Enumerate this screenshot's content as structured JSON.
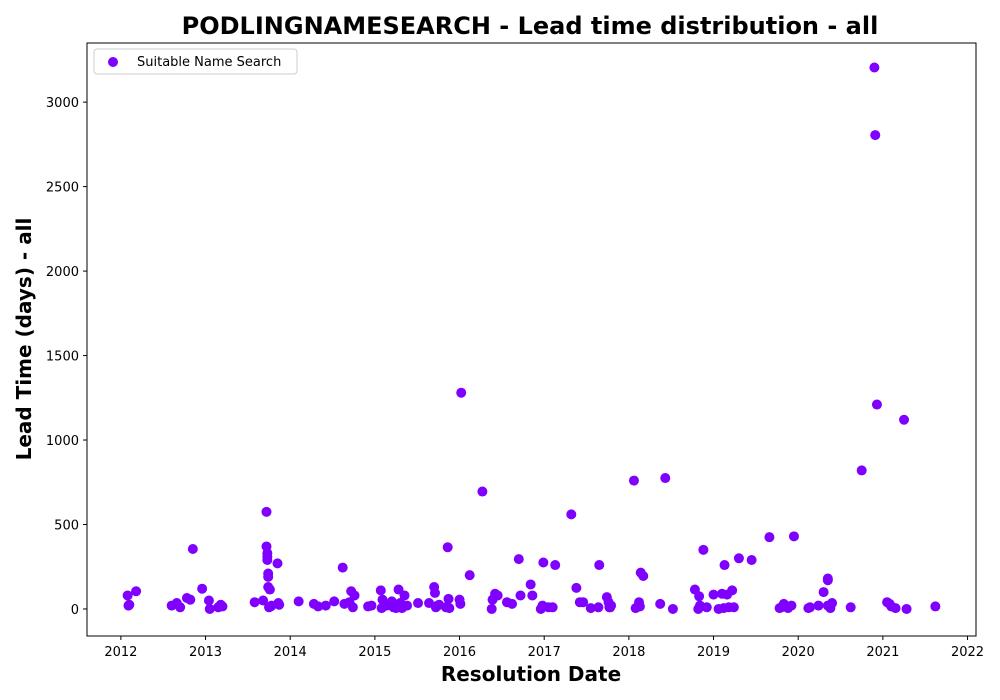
{
  "chart_data": {
    "type": "scatter",
    "title": "PODLINGNAMESEARCH - Lead time distribution - all",
    "xlabel": "Resolution Date",
    "ylabel": "Lead Time (days) - all",
    "xlim": [
      2011.6,
      2022.1
    ],
    "ylim": [
      -160,
      3350
    ],
    "x_ticks": [
      "2012",
      "2013",
      "2014",
      "2015",
      "2016",
      "2017",
      "2018",
      "2019",
      "2020",
      "2021",
      "2022"
    ],
    "y_ticks": [
      "0",
      "500",
      "1000",
      "1500",
      "2000",
      "2500",
      "3000"
    ],
    "legend_position": "top-left",
    "grid": false,
    "series": [
      {
        "name": "Suitable Name Search",
        "color": "#7f00ff",
        "x": [
          2012.08,
          2012.09,
          2012.1,
          2012.18,
          2012.6,
          2012.66,
          2012.7,
          2012.78,
          2012.82,
          2012.85,
          2012.96,
          2013.04,
          2013.05,
          2013.15,
          2013.18,
          2013.2,
          2013.58,
          2013.68,
          2013.72,
          2013.72,
          2013.73,
          2013.73,
          2013.73,
          2013.74,
          2013.74,
          2013.74,
          2013.75,
          2013.76,
          2013.77,
          2013.78,
          2013.85,
          2013.86,
          2013.87,
          2014.1,
          2014.28,
          2014.33,
          2014.42,
          2014.52,
          2014.62,
          2014.64,
          2014.7,
          2014.72,
          2014.74,
          2014.76,
          2014.92,
          2014.96,
          2015.07,
          2015.08,
          2015.09,
          2015.11,
          2015.14,
          2015.2,
          2015.22,
          2015.25,
          2015.28,
          2015.3,
          2015.32,
          2015.35,
          2015.38,
          2015.51,
          2015.64,
          2015.7,
          2015.71,
          2015.72,
          2015.74,
          2015.76,
          2015.84,
          2015.86,
          2015.87,
          2015.88,
          2016.0,
          2016.01,
          2016.02,
          2016.12,
          2016.27,
          2016.38,
          2016.39,
          2016.42,
          2016.45,
          2016.56,
          2016.62,
          2016.7,
          2016.72,
          2016.84,
          2016.86,
          2016.96,
          2016.98,
          2016.99,
          2017.05,
          2017.1,
          2017.13,
          2017.32,
          2017.38,
          2017.42,
          2017.46,
          2017.55,
          2017.64,
          2017.65,
          2017.74,
          2017.76,
          2017.77,
          2017.78,
          2017.79,
          2018.06,
          2018.08,
          2018.12,
          2018.13,
          2018.14,
          2018.17,
          2018.37,
          2018.43,
          2018.52,
          2018.78,
          2018.82,
          2018.83,
          2018.84,
          2018.88,
          2018.92,
          2019.0,
          2019.06,
          2019.1,
          2019.12,
          2019.13,
          2019.16,
          2019.18,
          2019.22,
          2019.24,
          2019.3,
          2019.45,
          2019.66,
          2019.78,
          2019.8,
          2019.83,
          2019.86,
          2019.88,
          2019.92,
          2019.95,
          2020.12,
          2020.14,
          2020.24,
          2020.3,
          2020.35,
          2020.35,
          2020.35,
          2020.38,
          2020.4,
          2020.62,
          2020.75,
          2020.9,
          2020.91,
          2020.93,
          2021.05,
          2021.08,
          2021.1,
          2021.15,
          2021.25,
          2021.28,
          2021.62
        ],
        "y": [
          80,
          20,
          25,
          105,
          20,
          35,
          10,
          65,
          55,
          355,
          120,
          50,
          0,
          10,
          25,
          15,
          40,
          50,
          575,
          370,
          330,
          310,
          290,
          190,
          210,
          130,
          10,
          115,
          15,
          20,
          270,
          35,
          25,
          45,
          30,
          15,
          20,
          45,
          245,
          30,
          40,
          105,
          10,
          80,
          15,
          20,
          110,
          5,
          55,
          35,
          20,
          45,
          10,
          5,
          115,
          35,
          5,
          80,
          20,
          35,
          35,
          130,
          95,
          10,
          20,
          25,
          10,
          365,
          60,
          5,
          55,
          30,
          1280,
          200,
          695,
          0,
          55,
          90,
          80,
          40,
          30,
          295,
          80,
          145,
          80,
          0,
          20,
          275,
          10,
          10,
          260,
          560,
          125,
          40,
          40,
          5,
          10,
          260,
          70,
          40,
          10,
          10,
          20,
          760,
          5,
          40,
          15,
          215,
          195,
          30,
          775,
          0,
          115,
          0,
          75,
          20,
          350,
          10,
          85,
          0,
          90,
          5,
          260,
          85,
          10,
          110,
          10,
          300,
          290,
          425,
          5,
          10,
          30,
          15,
          5,
          20,
          430,
          5,
          10,
          20,
          100,
          170,
          180,
          20,
          5,
          35,
          10,
          820,
          3205,
          2805,
          1210,
          40,
          30,
          15,
          5,
          1120,
          0,
          15
        ]
      }
    ]
  }
}
